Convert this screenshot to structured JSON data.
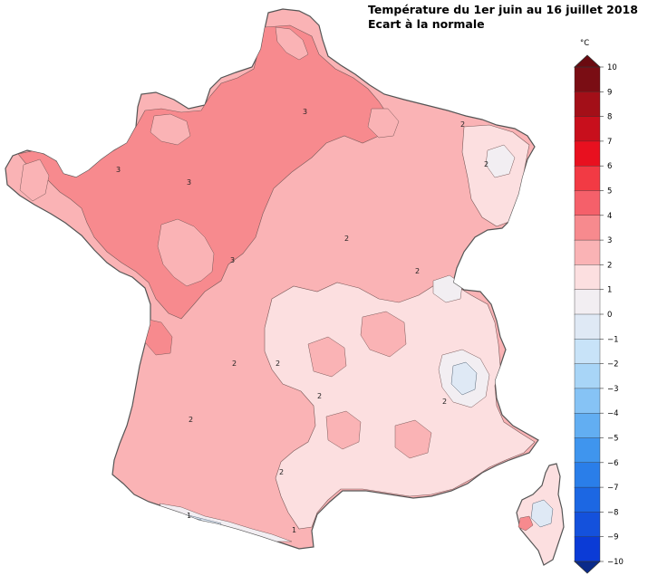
{
  "map": {
    "title": "Température du 1er juin au 16 juillet 2018",
    "subtitle": "Ecart à la normale",
    "colors": {
      "plus_3_to_4": "#f78a8e",
      "plus_2_to_3": "#fab3b5",
      "plus_1_to_2": "#fcdfe0",
      "zero_to_plus_1": "#f2eef2",
      "minus_1_to_0": "#dfe9f5",
      "minus_2_to_minus_1": "#c8e3f8"
    },
    "contour_labels": [
      "3",
      "3",
      "3",
      "3",
      "2",
      "2",
      "2",
      "2",
      "2",
      "2",
      "2",
      "2",
      "2",
      "2",
      "1",
      "1"
    ]
  },
  "legend": {
    "unit": "°C",
    "ticks": [
      "10",
      "9",
      "8",
      "7",
      "6",
      "5",
      "4",
      "3",
      "2",
      "1",
      "0",
      "−1",
      "−2",
      "−3",
      "−4",
      "−5",
      "−6",
      "−7",
      "−8",
      "−9",
      "−10"
    ],
    "colors": [
      "#7a0d14",
      "#a30f18",
      "#c80f1c",
      "#e8101f",
      "#f23a44",
      "#f5606a",
      "#f78a8e",
      "#fab3b5",
      "#fcdfe0",
      "#f2eef2",
      "#dfe9f5",
      "#c8e3f8",
      "#a8d5f7",
      "#86c3f5",
      "#62aef2",
      "#3f95ee",
      "#2a7ee9",
      "#1c67e3",
      "#1451dc",
      "#0b3bd6"
    ],
    "top_color": "#6a0a10",
    "bottom_color": "#0a2a8a"
  }
}
